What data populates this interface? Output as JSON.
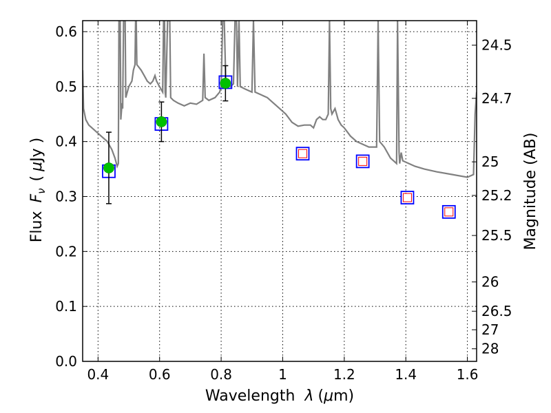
{
  "chart_data": {
    "type": "scatter",
    "xlabel": {
      "prefix": "Wavelength",
      "symbol": "λ",
      "open": "(",
      "unit_sym": "μ",
      "unit": "m)"
    },
    "ylabel": {
      "prefix": "Flux",
      "symbol": "F",
      "sub": "ν",
      "open": "(",
      "unit_sym": "μ",
      "unit": "Jy )"
    },
    "y2label": "Magnitude (AB)",
    "xlim": [
      0.35,
      1.63
    ],
    "ylim": [
      0.0,
      0.62
    ],
    "grid": true,
    "x_ticks": [
      {
        "value": 0.4,
        "label": "0.4"
      },
      {
        "value": 0.6,
        "label": "0.6"
      },
      {
        "value": 0.8,
        "label": "0.8"
      },
      {
        "value": 1.0,
        "label": "1"
      },
      {
        "value": 1.2,
        "label": "1.2"
      },
      {
        "value": 1.4,
        "label": "1.4"
      },
      {
        "value": 1.6,
        "label": "1.6"
      }
    ],
    "y_ticks": [
      {
        "value": 0.0,
        "label": "0.0"
      },
      {
        "value": 0.1,
        "label": "0.1"
      },
      {
        "value": 0.2,
        "label": "0.2"
      },
      {
        "value": 0.3,
        "label": "0.3"
      },
      {
        "value": 0.4,
        "label": "0.4"
      },
      {
        "value": 0.5,
        "label": "0.5"
      },
      {
        "value": 0.6,
        "label": "0.6"
      }
    ],
    "mag_ticks": [
      {
        "value": 24.5,
        "label": "24.5"
      },
      {
        "value": 24.7,
        "label": "24.7"
      },
      {
        "value": 25.0,
        "label": "25"
      },
      {
        "value": 25.2,
        "label": "25.2"
      },
      {
        "value": 25.5,
        "label": "25.5"
      },
      {
        "value": 26.0,
        "label": "26"
      },
      {
        "value": 26.5,
        "label": "26.5"
      },
      {
        "value": 27.0,
        "label": "27"
      },
      {
        "value": 28.0,
        "label": "28"
      }
    ],
    "observed": [
      {
        "x": 0.435,
        "y": 0.352,
        "err": 0.065
      },
      {
        "x": 0.606,
        "y": 0.436,
        "err": 0.036
      },
      {
        "x": 0.814,
        "y": 0.506,
        "err": 0.032
      }
    ],
    "model_boxes": [
      {
        "x": 0.435,
        "y": 0.346
      },
      {
        "x": 0.606,
        "y": 0.432
      },
      {
        "x": 0.814,
        "y": 0.508
      }
    ],
    "predicted": [
      {
        "x": 1.065,
        "y": 0.378
      },
      {
        "x": 1.26,
        "y": 0.364
      },
      {
        "x": 1.405,
        "y": 0.298
      },
      {
        "x": 1.54,
        "y": 0.272
      }
    ],
    "spectrum": [
      [
        0.35,
        0.53
      ],
      [
        0.353,
        0.46
      ],
      [
        0.36,
        0.44
      ],
      [
        0.37,
        0.43
      ],
      [
        0.39,
        0.42
      ],
      [
        0.41,
        0.41
      ],
      [
        0.43,
        0.4
      ],
      [
        0.445,
        0.385
      ],
      [
        0.455,
        0.37
      ],
      [
        0.462,
        0.355
      ],
      [
        0.466,
        0.36
      ],
      [
        0.468,
        0.62
      ],
      [
        0.472,
        0.62
      ],
      [
        0.474,
        0.44
      ],
      [
        0.478,
        0.47
      ],
      [
        0.48,
        0.46
      ],
      [
        0.483,
        0.62
      ],
      [
        0.488,
        0.62
      ],
      [
        0.49,
        0.48
      ],
      [
        0.5,
        0.5
      ],
      [
        0.51,
        0.51
      ],
      [
        0.515,
        0.53
      ],
      [
        0.52,
        0.54
      ],
      [
        0.522,
        0.62
      ],
      [
        0.524,
        0.62
      ],
      [
        0.526,
        0.54
      ],
      [
        0.54,
        0.53
      ],
      [
        0.55,
        0.52
      ],
      [
        0.56,
        0.51
      ],
      [
        0.57,
        0.505
      ],
      [
        0.578,
        0.51
      ],
      [
        0.585,
        0.52
      ],
      [
        0.59,
        0.51
      ],
      [
        0.6,
        0.5
      ],
      [
        0.61,
        0.49
      ],
      [
        0.613,
        0.62
      ],
      [
        0.616,
        0.62
      ],
      [
        0.618,
        0.49
      ],
      [
        0.62,
        0.48
      ],
      [
        0.626,
        0.62
      ],
      [
        0.63,
        0.62
      ],
      [
        0.633,
        0.62
      ],
      [
        0.636,
        0.48
      ],
      [
        0.645,
        0.475
      ],
      [
        0.66,
        0.47
      ],
      [
        0.68,
        0.465
      ],
      [
        0.7,
        0.47
      ],
      [
        0.72,
        0.468
      ],
      [
        0.74,
        0.475
      ],
      [
        0.744,
        0.56
      ],
      [
        0.748,
        0.48
      ],
      [
        0.76,
        0.475
      ],
      [
        0.78,
        0.48
      ],
      [
        0.795,
        0.49
      ],
      [
        0.8,
        0.5
      ],
      [
        0.805,
        0.62
      ],
      [
        0.81,
        0.62
      ],
      [
        0.815,
        0.51
      ],
      [
        0.83,
        0.5
      ],
      [
        0.84,
        0.505
      ],
      [
        0.845,
        0.62
      ],
      [
        0.85,
        0.62
      ],
      [
        0.853,
        0.5
      ],
      [
        0.858,
        0.62
      ],
      [
        0.862,
        0.5
      ],
      [
        0.88,
        0.495
      ],
      [
        0.9,
        0.49
      ],
      [
        0.905,
        0.62
      ],
      [
        0.91,
        0.49
      ],
      [
        0.93,
        0.485
      ],
      [
        0.95,
        0.48
      ],
      [
        0.97,
        0.47
      ],
      [
        0.99,
        0.46
      ],
      [
        1.01,
        0.45
      ],
      [
        1.03,
        0.435
      ],
      [
        1.05,
        0.428
      ],
      [
        1.07,
        0.43
      ],
      [
        1.09,
        0.43
      ],
      [
        1.1,
        0.425
      ],
      [
        1.11,
        0.44
      ],
      [
        1.12,
        0.445
      ],
      [
        1.13,
        0.44
      ],
      [
        1.14,
        0.44
      ],
      [
        1.148,
        0.45
      ],
      [
        1.152,
        0.62
      ],
      [
        1.156,
        0.46
      ],
      [
        1.16,
        0.45
      ],
      [
        1.17,
        0.46
      ],
      [
        1.175,
        0.45
      ],
      [
        1.18,
        0.44
      ],
      [
        1.19,
        0.43
      ],
      [
        1.2,
        0.425
      ],
      [
        1.22,
        0.41
      ],
      [
        1.24,
        0.4
      ],
      [
        1.26,
        0.395
      ],
      [
        1.28,
        0.39
      ],
      [
        1.305,
        0.39
      ],
      [
        1.31,
        0.62
      ],
      [
        1.315,
        0.4
      ],
      [
        1.33,
        0.39
      ],
      [
        1.35,
        0.37
      ],
      [
        1.37,
        0.36
      ],
      [
        1.373,
        0.62
      ],
      [
        1.378,
        0.38
      ],
      [
        1.38,
        0.36
      ],
      [
        1.385,
        0.38
      ],
      [
        1.39,
        0.365
      ],
      [
        1.41,
        0.36
      ],
      [
        1.43,
        0.355
      ],
      [
        1.46,
        0.35
      ],
      [
        1.5,
        0.345
      ],
      [
        1.55,
        0.34
      ],
      [
        1.6,
        0.335
      ],
      [
        1.62,
        0.34
      ],
      [
        1.625,
        0.45
      ],
      [
        1.63,
        0.49
      ]
    ]
  }
}
